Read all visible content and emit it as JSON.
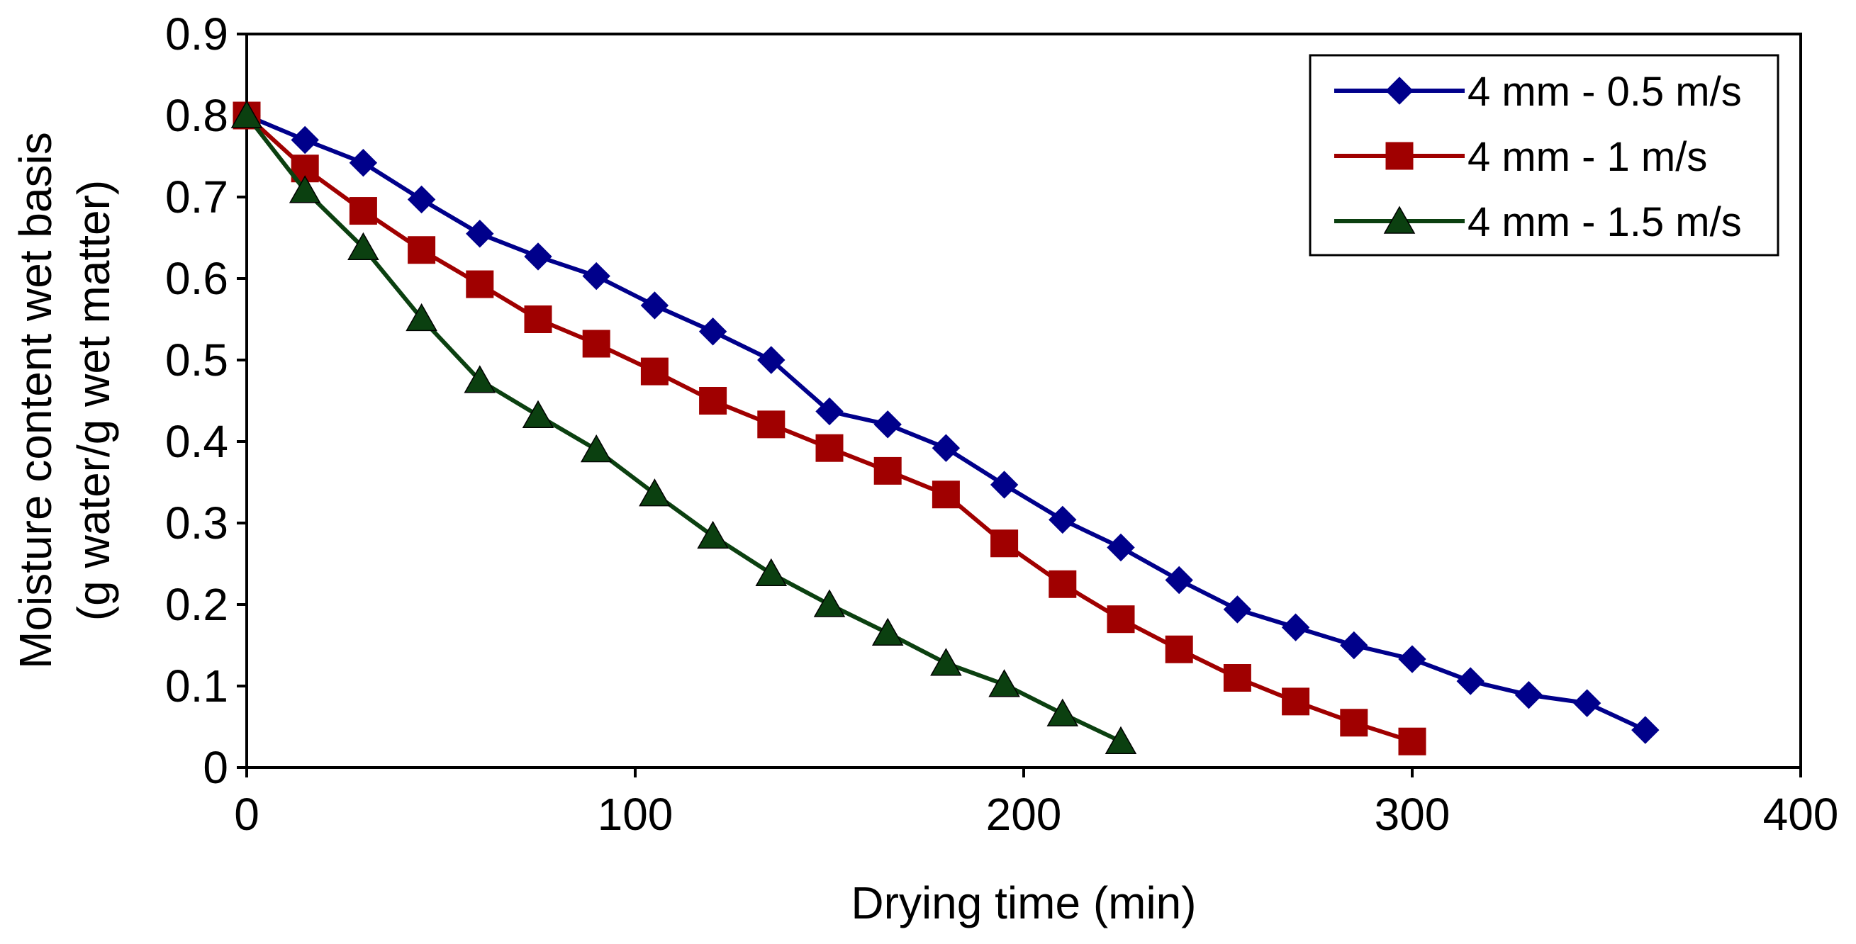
{
  "chart_data": {
    "type": "line",
    "title": "",
    "xlabel": "Drying time (min)",
    "ylabel_line1": "Moisture content wet basis",
    "ylabel_line2": "(g water/g wet matter)",
    "xlim": [
      0,
      400
    ],
    "ylim": [
      0,
      0.9
    ],
    "xticks": [
      "0",
      "100",
      "200",
      "300",
      "400"
    ],
    "yticks": [
      "0",
      "0.1",
      "0.2",
      "0.3",
      "0.4",
      "0.5",
      "0.6",
      "0.7",
      "0.8",
      "0.9"
    ],
    "grid": false,
    "legend_position": "top-right",
    "series": [
      {
        "name": "4 mm - 0.5 m/s",
        "color": "#00008B",
        "marker": "diamond",
        "x": [
          0,
          15,
          30,
          45,
          60,
          75,
          90,
          105,
          120,
          135,
          150,
          165,
          180,
          195,
          210,
          225,
          240,
          255,
          270,
          285,
          300,
          315,
          330,
          345,
          360
        ],
        "y": [
          0.8,
          0.77,
          0.742,
          0.697,
          0.655,
          0.627,
          0.603,
          0.567,
          0.535,
          0.5,
          0.437,
          0.421,
          0.392,
          0.347,
          0.304,
          0.27,
          0.23,
          0.194,
          0.172,
          0.15,
          0.133,
          0.106,
          0.089,
          0.079,
          0.046
        ]
      },
      {
        "name": "4 mm - 1 m/s",
        "color": "#A00000",
        "marker": "square",
        "x": [
          0,
          15,
          30,
          45,
          60,
          75,
          90,
          105,
          120,
          135,
          150,
          165,
          180,
          195,
          210,
          225,
          240,
          255,
          270,
          285,
          300
        ],
        "y": [
          0.8,
          0.735,
          0.683,
          0.635,
          0.593,
          0.55,
          0.52,
          0.486,
          0.45,
          0.421,
          0.392,
          0.364,
          0.335,
          0.275,
          0.225,
          0.182,
          0.145,
          0.11,
          0.081,
          0.055,
          0.032
        ]
      },
      {
        "name": "4 mm - 1.5 m/s",
        "color": "#0B4010",
        "marker": "triangle",
        "x": [
          0,
          15,
          30,
          45,
          60,
          75,
          90,
          105,
          120,
          135,
          150,
          165,
          180,
          195,
          210,
          225
        ],
        "y": [
          0.8,
          0.708,
          0.638,
          0.551,
          0.475,
          0.432,
          0.39,
          0.336,
          0.284,
          0.238,
          0.2,
          0.165,
          0.128,
          0.102,
          0.066,
          0.032
        ]
      }
    ]
  }
}
